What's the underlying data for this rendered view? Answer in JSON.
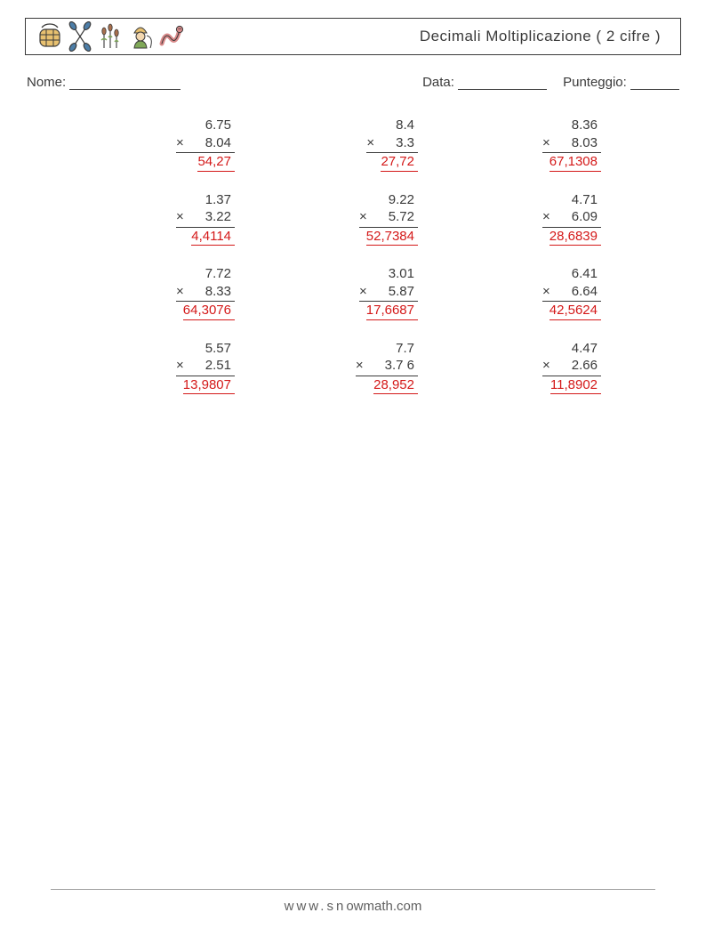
{
  "title": "Decimali Moltiplicazione ( 2 cifre )",
  "labels": {
    "name": "Nome:",
    "date": "Data:",
    "score": "Punteggio:"
  },
  "blank_widths": {
    "name": 125,
    "date": 100,
    "score": 55
  },
  "colors": {
    "text": "#3a3a3a",
    "answer": "#d41919",
    "background": "#ffffff",
    "footer_text": "#606060",
    "footer_line": "#a0a0a0",
    "icon_blue": "#4d7ea8",
    "icon_yellow": "#e8c170",
    "icon_brown": "#a86f4d",
    "icon_green": "#7fa858",
    "icon_pink": "#d98a8a"
  },
  "fontsize": {
    "title": 17,
    "info": 15,
    "problems": 15,
    "footer": 15
  },
  "blank_height": 14,
  "problems": [
    {
      "a": "6.75",
      "b": "8.04",
      "ans": "54,27"
    },
    {
      "a": "8.4",
      "b": "3.3",
      "ans": "27,72"
    },
    {
      "a": "8.36",
      "b": "8.03",
      "ans": "67,1308"
    },
    {
      "a": "1.37",
      "b": "3.22",
      "ans": "4,4114"
    },
    {
      "a": "9.22",
      "b": "5.72",
      "ans": "52,7384"
    },
    {
      "a": "4.71",
      "b": "6.09",
      "ans": "28,6839"
    },
    {
      "a": "7.72",
      "b": "8.33",
      "ans": "64,3076"
    },
    {
      "a": "3.01",
      "b": "5.87",
      "ans": "17,6687"
    },
    {
      "a": "6.41",
      "b": "6.64",
      "ans": "42,5624"
    },
    {
      "a": "5.57",
      "b": "2.51",
      "ans": "13,9807"
    },
    {
      "a": "7.7",
      "b": "3.7 6",
      "ans": "28,952"
    },
    {
      "a": "4.47",
      "b": "2.66",
      "ans": "11,8902"
    }
  ],
  "footer": {
    "brand1": "www.sn",
    "brand2": "owmath.com"
  },
  "multiply_symbol": "×"
}
